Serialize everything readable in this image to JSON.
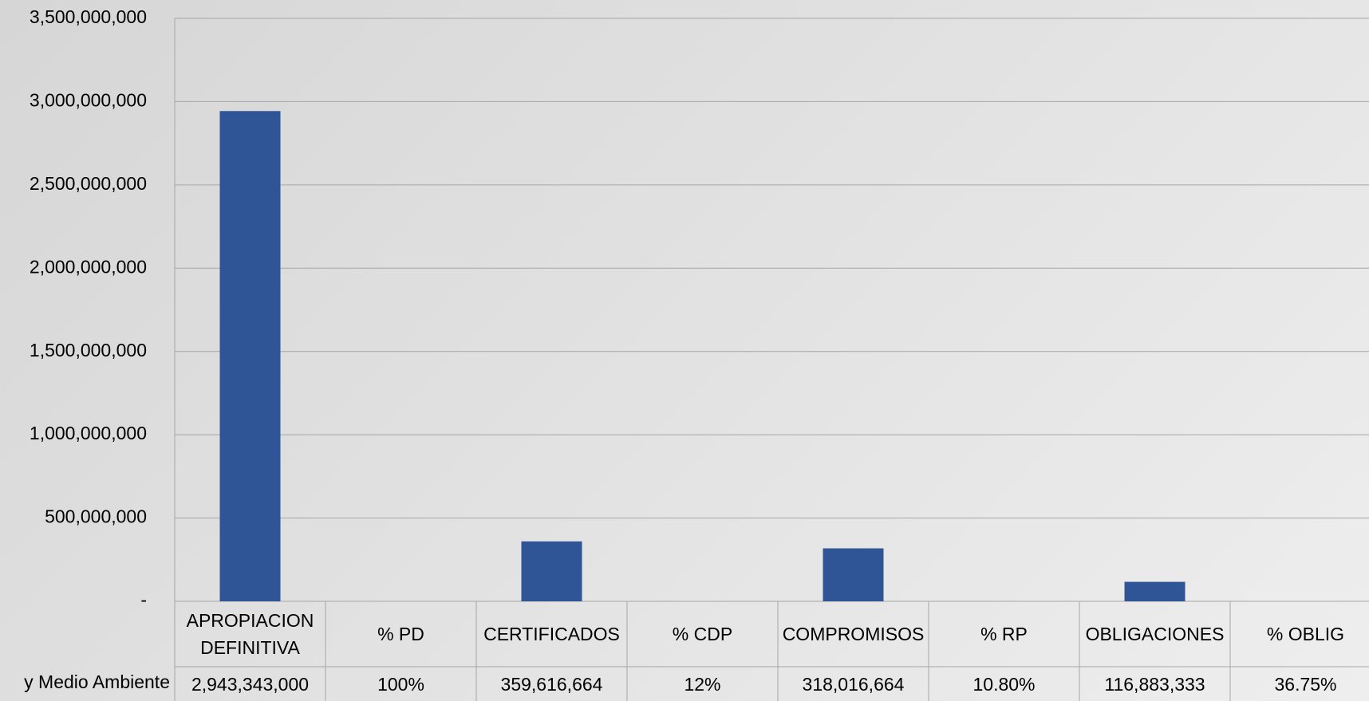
{
  "chart_data": {
    "type": "bar",
    "categories": [
      "APROPIACION DEFINITIVA",
      "% PD",
      "CERTIFICADOS",
      "% CDP",
      "COMPROMISOS",
      "% RP",
      "OBLIGACIONES",
      "% OBLIG"
    ],
    "series": [
      {
        "name": "y Medio Ambiente",
        "color": "#2f5597",
        "values": [
          2943343000,
          100,
          359616664,
          12,
          318016664,
          10.8,
          116883333,
          36.75
        ],
        "value_labels": [
          "2,943,343,000",
          "100%",
          "359,616,664",
          "12%",
          "318,016,664",
          "10.80%",
          "116,883,333",
          "36.75%"
        ]
      }
    ],
    "ylim": [
      0,
      3500000000
    ],
    "yticks": [
      {
        "value": 0,
        "label": "-"
      },
      {
        "value": 500000000,
        "label": "500,000,000"
      },
      {
        "value": 1000000000,
        "label": "1,000,000,000"
      },
      {
        "value": 1500000000,
        "label": "1,500,000,000"
      },
      {
        "value": 2000000000,
        "label": "2,000,000,000"
      },
      {
        "value": 2500000000,
        "label": "2,500,000,000"
      },
      {
        "value": 3000000000,
        "label": "3,000,000,000"
      },
      {
        "value": 3500000000,
        "label": "3,500,000,000"
      }
    ],
    "grid": true
  }
}
